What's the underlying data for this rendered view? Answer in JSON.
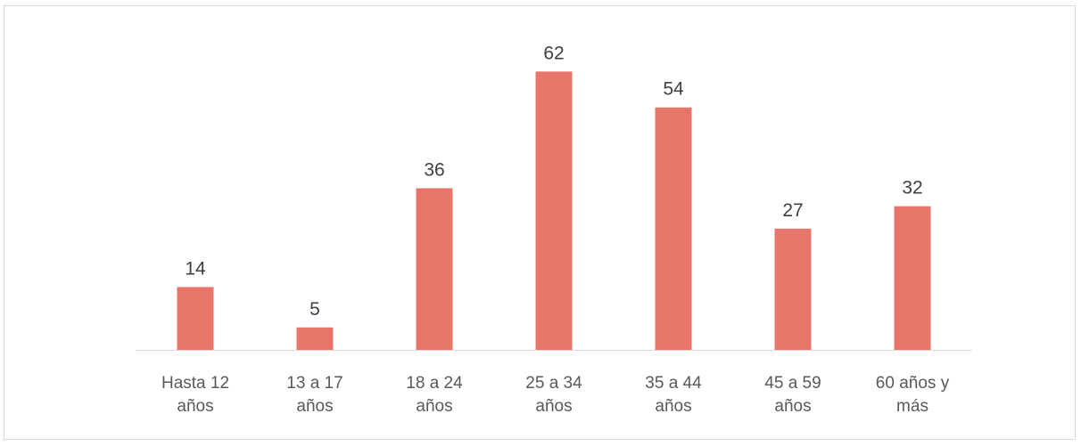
{
  "chart_data": {
    "type": "bar",
    "title": "",
    "xlabel": "",
    "ylabel": "",
    "categories": [
      [
        "Hasta 12",
        "años"
      ],
      [
        "13 a 17",
        "años"
      ],
      [
        "18 a 24",
        "años"
      ],
      [
        "25 a 34",
        "años"
      ],
      [
        "35 a 44",
        "años"
      ],
      [
        "45 a 59",
        "años"
      ],
      [
        "60 años y",
        "más"
      ]
    ],
    "values": [
      14,
      5,
      36,
      62,
      54,
      27,
      32
    ],
    "ylim": [
      0,
      70
    ],
    "grid": false,
    "legend": "none",
    "data_labels": true,
    "bar_color": "#e8756a",
    "label_color": "#404040",
    "tick_color": "#595959",
    "axis_color": "#d9d9d9"
  }
}
